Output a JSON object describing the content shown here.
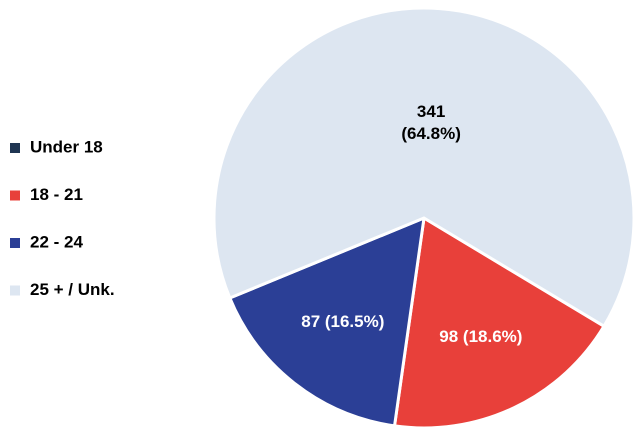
{
  "chart_data": {
    "type": "pie",
    "categories": [
      "Under 18",
      "18 - 21",
      "22 - 24",
      "25 + / Unk."
    ],
    "values": [
      0,
      98,
      87,
      341
    ],
    "value_labels": [
      null,
      "98 (18.6%)",
      "87 (16.5%)",
      "341 (64.8%)"
    ],
    "colors": [
      "#1f3552",
      "#e8403a",
      "#2b3f96",
      "#dde6f1"
    ],
    "legend": "left"
  }
}
